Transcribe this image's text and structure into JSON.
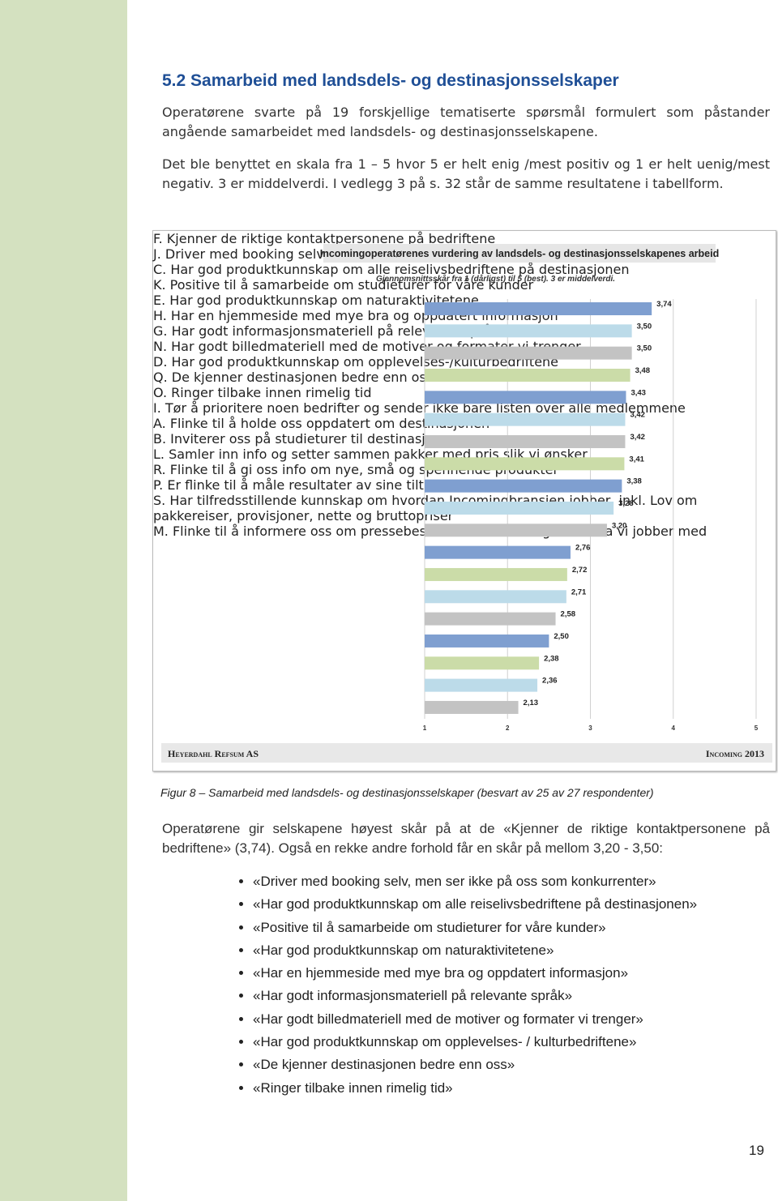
{
  "heading": "5.2 Samarbeid med landsdels- og destinasjonsselskaper",
  "paragraphs": [
    "Operatørene svarte på 19 forskjellige tematiserte spørsmål formulert som påstander angående samarbeidet med landsdels- og destinasjonsselskapene.",
    "Det ble benyttet en skala fra 1 – 5 hvor 5 er helt enig /mest positiv og 1 er helt uenig/mest negativ. 3 er middelverdi.  I vedlegg 3 på s. 32 står de samme resultatene i tabellform."
  ],
  "chart_data": {
    "type": "hbar",
    "title": "Incomingoperatørenes vurdering av landsdels- og destinasjonsselskapenes arbeid",
    "subtitle": "Gjennomsnittsskår fra 1 (dårligst) til 5 (best).  3 er middelverdi.",
    "categories": [
      "F. Kjenner de riktige kontaktpersonene på bedriftene",
      "J. Driver med booking selv, men ser ikke på oss som konkurrenter",
      "C. Har god produktkunnskap om alle reiselivsbedriftene på destinasjonen",
      "K. Positive til å samarbeide om studieturer for våre kunder",
      "E. Har god produktkunnskap om naturaktivitetene",
      "H. Har en hjemmeside med mye bra og oppdatert informasjon",
      "G. Har godt informasjonsmateriell på relevante språk",
      "N. Har godt billedmateriell med de motiver og formater vi trenger",
      "D. Har god produktkunnskap om opplevelses-/kulturbedriftene",
      "Q. De kjenner destinasjonen bedre enn oss",
      "O. Ringer tilbake innen rimelig tid",
      "I. Tør å prioritere noen bedrifter og sender ikke bare listen over alle medlemmene",
      "A. Flinke til å holde oss oppdatert om destinasjonen",
      "B. Inviterer oss på studieturer til destinasjonen",
      "L. Samler inn info og setter sammen pakker med pris slik vi ønsker",
      "R. Flinke til å gi oss info om nye, små og spennende produkter",
      "P. Er flinke til å måle resultater av sine tiltak",
      "S. Har tilfredsstillende kunnskap om hvordan Incomingbransjen jobber, inkl. Lov om pakkereiser, provisjoner, nette og bruttopriser",
      "M. Flinke til å informere oss om pressebesøk fra markeder og om tema vi jobber med"
    ],
    "values": [
      3.74,
      3.5,
      3.5,
      3.48,
      3.43,
      3.42,
      3.42,
      3.41,
      3.38,
      3.28,
      3.2,
      2.76,
      2.72,
      2.71,
      2.58,
      2.5,
      2.38,
      2.36,
      2.13
    ],
    "value_labels": [
      "3,74",
      "3,50",
      "3,50",
      "3,48",
      "3,43",
      "3,42",
      "3,42",
      "3,41",
      "3,38",
      "3,28",
      "3,20",
      "2,76",
      "2,72",
      "2,71",
      "2,58",
      "2,50",
      "2,38",
      "2,36",
      "2,13"
    ],
    "colors": [
      "#7f9fd0",
      "#bcdbe9",
      "#c3c3c3",
      "#cbdca8",
      "#7f9fd0",
      "#bcdbe9",
      "#c3c3c3",
      "#cbdca8",
      "#7f9fd0",
      "#bcdbe9",
      "#c3c3c3",
      "#7f9fd0",
      "#cbdca8",
      "#bcdbe9",
      "#c3c3c3",
      "#7f9fd0",
      "#cbdca8",
      "#bcdbe9",
      "#c3c3c3"
    ],
    "xlim": [
      1,
      5
    ],
    "xticks": [
      1,
      2,
      3,
      4,
      5
    ],
    "grid": true,
    "footer_left": "Heyerdahl Refsum AS",
    "footer_right": "Incoming 2013"
  },
  "caption": "Figur 8 – Samarbeid med landsdels- og destinasjonsselskaper (besvart av 25 av 27 respondenter)",
  "body": "Operatørene gir selskapene høyest skår på at de «Kjenner de riktige kontaktpersonene på bedriftene» (3,74). Også en rekke andre forhold får en skår på mellom 3,20 - 3,50:",
  "bullets": [
    "«Driver med booking selv, men ser ikke på oss som konkurrenter»",
    "«Har god produktkunnskap om alle reiselivsbedriftene på destinasjonen»",
    "«Positive til å samarbeide om studieturer for våre kunder»",
    "«Har god produktkunnskap om naturaktivitetene»",
    "«Har en hjemmeside med mye bra og oppdatert informasjon»",
    "«Har godt informasjonsmateriell på relevante språk»",
    "«Har godt billedmateriell med de motiver og formater vi trenger»",
    "«Har god produktkunnskap om opplevelses- / kulturbedriftene»",
    "«De kjenner destinasjonen bedre enn oss»",
    "«Ringer tilbake innen rimelig tid»"
  ],
  "page_number": "19"
}
